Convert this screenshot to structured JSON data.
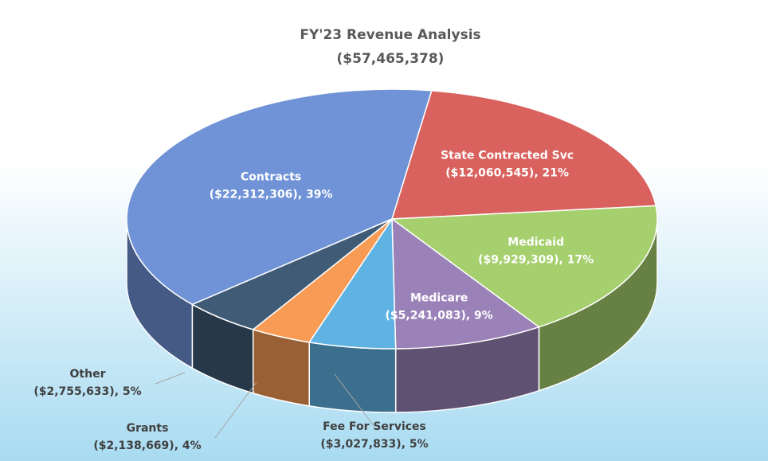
{
  "chart_data": {
    "type": "pie3d",
    "title": "FY'23 Revenue Analysis",
    "subtitle": "($57,465,378)",
    "categories": [
      "State Contracted Svc",
      "Medicaid",
      "Medicare",
      "Fee For Services",
      "Grants",
      "Other",
      "Contracts"
    ],
    "values": [
      12060545,
      9929309,
      5241083,
      3027833,
      2138669,
      2755633,
      22312306
    ],
    "value_labels": [
      "($12,060,545), 21%",
      "($9,929,309), 17%",
      "($5,241,083), 9%",
      "($3,027,833), 5%",
      "($2,138,669), 4%",
      "($2,755,633), 5%",
      "($22,312,306), 39%"
    ],
    "colors": [
      "#d9625f",
      "#a6cf6e",
      "#9a82b8",
      "#5fb3e3",
      "#f79b55",
      "#3f5b76",
      "#6f93d6"
    ]
  }
}
